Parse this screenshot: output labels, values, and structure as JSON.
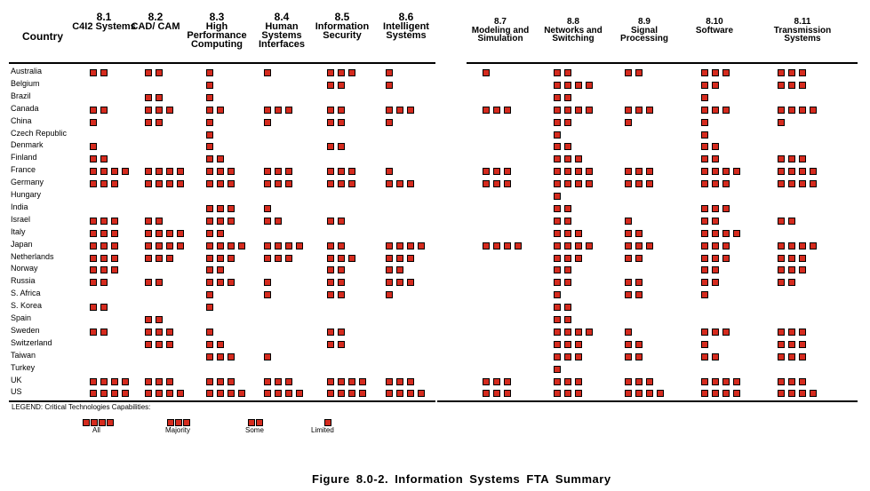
{
  "header": {
    "country_label": "Country",
    "columns": [
      {
        "num": "8.1",
        "name": "C4I2 Systems"
      },
      {
        "num": "8.2",
        "name": "CAD/ CAM"
      },
      {
        "num": "8.3",
        "name": "High Performance Computing"
      },
      {
        "num": "8.4",
        "name": "Human Systems Interfaces"
      },
      {
        "num": "8.5",
        "name": "Information Security"
      },
      {
        "num": "8.6",
        "name": "Intelligent Systems"
      },
      {
        "num": "8.7",
        "name": "Modeling and Simulation"
      },
      {
        "num": "8.8",
        "name": "Networks and Switching"
      },
      {
        "num": "8.9",
        "name": "Signal Processing"
      },
      {
        "num": "8.10",
        "name": "Software"
      },
      {
        "num": "8.11",
        "name": "Transmission Systems"
      }
    ]
  },
  "rows": [
    {
      "country": "Australia",
      "values": [
        2,
        2,
        1,
        1,
        3,
        1,
        1,
        2,
        2,
        3,
        3
      ]
    },
    {
      "country": "Belgium",
      "values": [
        0,
        0,
        1,
        0,
        2,
        1,
        0,
        4,
        0,
        2,
        3
      ]
    },
    {
      "country": "Brazil",
      "values": [
        0,
        2,
        1,
        0,
        0,
        0,
        0,
        2,
        0,
        1,
        0
      ]
    },
    {
      "country": "Canada",
      "values": [
        2,
        3,
        2,
        3,
        2,
        3,
        3,
        4,
        3,
        3,
        4
      ]
    },
    {
      "country": "China",
      "values": [
        1,
        2,
        1,
        1,
        2,
        1,
        0,
        2,
        1,
        1,
        1
      ]
    },
    {
      "country": "Czech Republic",
      "values": [
        0,
        0,
        1,
        0,
        0,
        0,
        0,
        1,
        0,
        1,
        0
      ]
    },
    {
      "country": "Denmark",
      "values": [
        1,
        0,
        1,
        0,
        2,
        0,
        0,
        2,
        0,
        2,
        0
      ]
    },
    {
      "country": "Finland",
      "values": [
        2,
        0,
        2,
        0,
        0,
        0,
        0,
        3,
        0,
        2,
        3
      ]
    },
    {
      "country": "France",
      "values": [
        4,
        4,
        3,
        3,
        3,
        1,
        3,
        4,
        3,
        4,
        4
      ]
    },
    {
      "country": "Germany",
      "values": [
        3,
        4,
        3,
        3,
        3,
        3,
        3,
        4,
        3,
        3,
        4
      ]
    },
    {
      "country": "Hungary",
      "values": [
        0,
        0,
        0,
        0,
        0,
        0,
        0,
        1,
        0,
        0,
        0
      ]
    },
    {
      "country": "India",
      "values": [
        0,
        0,
        3,
        1,
        0,
        0,
        0,
        2,
        0,
        3,
        0
      ]
    },
    {
      "country": "Israel",
      "values": [
        3,
        2,
        3,
        2,
        2,
        0,
        0,
        2,
        1,
        2,
        2
      ]
    },
    {
      "country": "Italy",
      "values": [
        3,
        4,
        2,
        0,
        0,
        0,
        0,
        3,
        2,
        4,
        0
      ]
    },
    {
      "country": "Japan",
      "values": [
        3,
        4,
        4,
        4,
        2,
        4,
        4,
        4,
        3,
        3,
        4
      ]
    },
    {
      "country": "Netherlands",
      "values": [
        3,
        3,
        3,
        3,
        3,
        3,
        0,
        3,
        2,
        3,
        3
      ]
    },
    {
      "country": "Norway",
      "values": [
        3,
        0,
        2,
        0,
        2,
        2,
        0,
        2,
        0,
        2,
        3
      ]
    },
    {
      "country": "Russia",
      "values": [
        2,
        2,
        3,
        1,
        2,
        3,
        0,
        2,
        2,
        2,
        2
      ]
    },
    {
      "country": "S. Africa",
      "values": [
        0,
        0,
        1,
        1,
        2,
        1,
        0,
        1,
        2,
        1,
        0
      ]
    },
    {
      "country": "S. Korea",
      "values": [
        2,
        0,
        1,
        0,
        0,
        0,
        0,
        2,
        0,
        0,
        0
      ]
    },
    {
      "country": "Spain",
      "values": [
        0,
        2,
        0,
        0,
        0,
        0,
        0,
        2,
        0,
        0,
        0
      ]
    },
    {
      "country": "Sweden",
      "values": [
        2,
        3,
        1,
        0,
        2,
        0,
        0,
        4,
        1,
        3,
        3
      ]
    },
    {
      "country": "Switzerland",
      "values": [
        0,
        3,
        2,
        0,
        2,
        0,
        0,
        3,
        2,
        1,
        3
      ]
    },
    {
      "country": "Taiwan",
      "values": [
        0,
        0,
        3,
        1,
        0,
        0,
        0,
        3,
        2,
        2,
        3
      ]
    },
    {
      "country": "Turkey",
      "values": [
        0,
        0,
        0,
        0,
        0,
        0,
        0,
        1,
        0,
        0,
        0
      ]
    },
    {
      "country": "UK",
      "values": [
        4,
        3,
        3,
        3,
        4,
        3,
        3,
        3,
        3,
        4,
        3
      ]
    },
    {
      "country": "US",
      "values": [
        4,
        4,
        4,
        4,
        4,
        4,
        3,
        3,
        4,
        4,
        4
      ]
    }
  ],
  "legend": {
    "title": "LEGEND: Critical Technologies Capabilities:",
    "items": [
      {
        "label": "All",
        "boxes": 4
      },
      {
        "label": "Majority",
        "boxes": 3
      },
      {
        "label": "Some",
        "boxes": 2
      },
      {
        "label": "Limited",
        "boxes": 1
      }
    ]
  },
  "caption": "Figure 8.0-2.   Information Systems FTA Summary",
  "colors": {
    "box_fill": "#d52b1e",
    "box_border": "#000000"
  }
}
